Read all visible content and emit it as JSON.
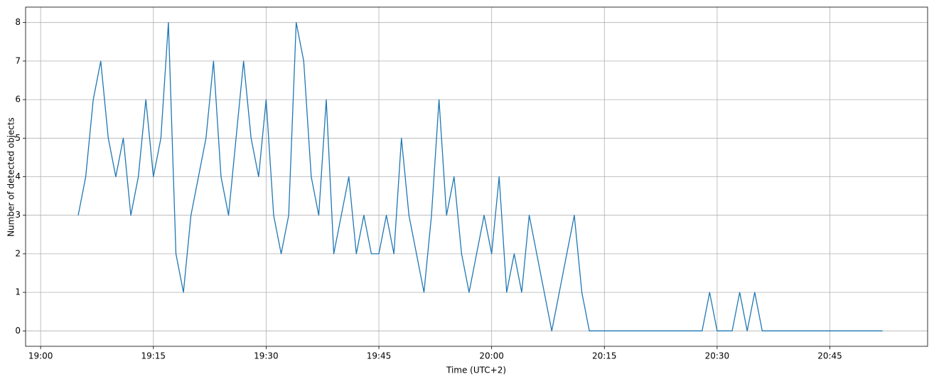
{
  "chart_data": {
    "type": "line",
    "xlabel": "Time (UTC+2)",
    "ylabel": "Number of detected objects",
    "x": [
      "19:05",
      "19:06",
      "19:07",
      "19:08",
      "19:09",
      "19:10",
      "19:11",
      "19:12",
      "19:13",
      "19:14",
      "19:15",
      "19:16",
      "19:17",
      "19:18",
      "19:19",
      "19:20",
      "19:21",
      "19:22",
      "19:23",
      "19:24",
      "19:25",
      "19:26",
      "19:27",
      "19:28",
      "19:29",
      "19:30",
      "19:31",
      "19:32",
      "19:33",
      "19:34",
      "19:35",
      "19:36",
      "19:37",
      "19:38",
      "19:39",
      "19:40",
      "19:41",
      "19:42",
      "19:43",
      "19:44",
      "19:45",
      "19:46",
      "19:47",
      "19:48",
      "19:49",
      "19:50",
      "19:51",
      "19:52",
      "19:53",
      "19:54",
      "19:55",
      "19:56",
      "19:57",
      "19:58",
      "19:59",
      "20:00",
      "20:01",
      "20:02",
      "20:03",
      "20:04",
      "20:05",
      "20:06",
      "20:07",
      "20:08",
      "20:09",
      "20:10",
      "20:11",
      "20:12",
      "20:13",
      "20:28",
      "20:29",
      "20:30",
      "20:32",
      "20:33",
      "20:34",
      "20:35",
      "20:36",
      "20:52"
    ],
    "series": [
      {
        "color": "#1f77b4",
        "values": [
          3,
          4,
          6,
          7,
          5,
          4,
          5,
          3,
          4,
          6,
          4,
          5,
          8,
          2,
          1,
          3,
          4,
          5,
          7,
          4,
          3,
          5,
          7,
          5,
          4,
          6,
          3,
          2,
          3,
          8,
          7,
          4,
          3,
          6,
          2,
          3,
          4,
          2,
          3,
          2,
          2,
          3,
          2,
          5,
          3,
          2,
          1,
          3,
          6,
          3,
          4,
          2,
          1,
          2,
          3,
          2,
          4,
          1,
          2,
          1,
          3,
          2,
          1,
          0,
          1,
          2,
          3,
          1,
          0,
          0,
          1,
          0,
          0,
          1,
          0,
          1,
          0,
          0
        ]
      }
    ],
    "xlim": [
      "18:58",
      "20:58"
    ],
    "xticks": [
      "19:00",
      "19:15",
      "19:30",
      "19:45",
      "20:00",
      "20:15",
      "20:30",
      "20:45"
    ],
    "ylim": [
      -0.4,
      8.4
    ],
    "yticks": [
      0,
      1,
      2,
      3,
      4,
      5,
      6,
      7,
      8
    ],
    "grid": true
  }
}
